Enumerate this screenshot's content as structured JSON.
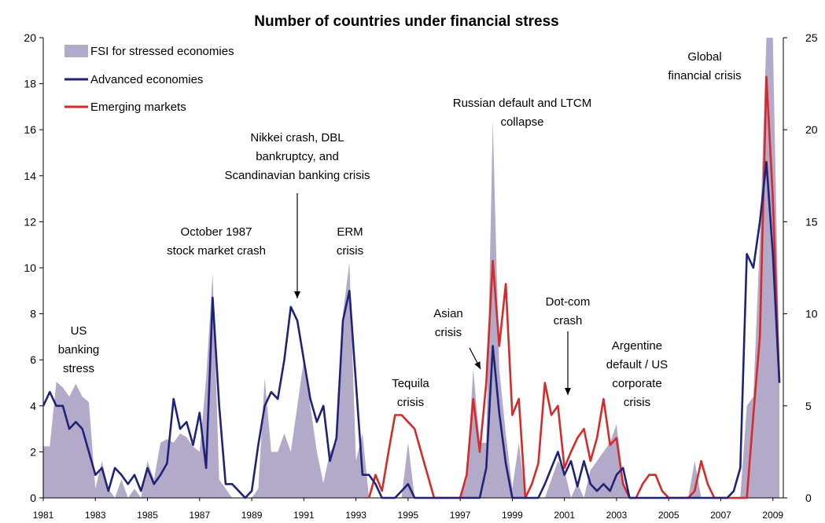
{
  "chart_data": {
    "type": "line",
    "title": "Number of countries under financial stress",
    "xlabel": "",
    "ylabel": "",
    "x_range": [
      1981,
      2009.4
    ],
    "ylim": [
      0,
      20
    ],
    "y2lim": [
      0,
      25
    ],
    "y_ticks": [
      0,
      2,
      4,
      6,
      8,
      10,
      12,
      14,
      16,
      18,
      20
    ],
    "y2_ticks": [
      0,
      5,
      10,
      15,
      20,
      25
    ],
    "x_tick_labels": [
      "1981",
      "1983",
      "1985",
      "1987",
      "1989",
      "1991",
      "1993",
      "1995",
      "1997",
      "1999",
      "2001",
      "2003",
      "2005",
      "2007",
      "2009"
    ],
    "legend_position": "top-left",
    "colors": {
      "fsi": "#b3a9c9",
      "advanced": "#1f2378",
      "emerging": "#d42a2a"
    },
    "series": [
      {
        "name": "FSI for stressed economies",
        "type": "area",
        "axis": "right",
        "x": [
          1981.0,
          1981.25,
          1981.5,
          1981.75,
          1982.0,
          1982.25,
          1982.5,
          1982.75,
          1983.0,
          1983.25,
          1983.5,
          1983.75,
          1984.0,
          1984.25,
          1984.5,
          1984.75,
          1985.0,
          1985.25,
          1985.5,
          1985.75,
          1986.0,
          1986.25,
          1986.5,
          1986.75,
          1987.0,
          1987.25,
          1987.5,
          1987.75,
          1988.0,
          1988.25,
          1988.5,
          1988.75,
          1989.0,
          1989.25,
          1989.5,
          1989.75,
          1990.0,
          1990.25,
          1990.5,
          1990.75,
          1991.0,
          1991.25,
          1991.5,
          1991.75,
          1992.0,
          1992.25,
          1992.5,
          1992.75,
          1993.0,
          1993.25,
          1993.5,
          1993.75,
          1994.0,
          1994.25,
          1994.5,
          1994.75,
          1995.0,
          1995.25,
          1995.5,
          1995.75,
          1996.0,
          1996.25,
          1996.5,
          1996.75,
          1997.0,
          1997.25,
          1997.5,
          1997.75,
          1998.0,
          1998.25,
          1998.5,
          1998.75,
          1999.0,
          1999.25,
          1999.5,
          1999.75,
          2000.0,
          2000.25,
          2000.5,
          2000.75,
          2001.0,
          2001.25,
          2001.5,
          2001.75,
          2002.0,
          2002.25,
          2002.5,
          2002.75,
          2003.0,
          2003.25,
          2003.5,
          2003.75,
          2004.0,
          2004.25,
          2004.5,
          2004.75,
          2005.0,
          2005.25,
          2005.5,
          2005.75,
          2006.0,
          2006.25,
          2006.5,
          2006.75,
          2007.0,
          2007.25,
          2007.5,
          2007.75,
          2008.0,
          2008.25,
          2008.5,
          2008.75,
          2009.0,
          2009.25
        ],
        "values": [
          2.8,
          2.8,
          6.3,
          6.0,
          5.5,
          6.2,
          5.5,
          5.2,
          0.5,
          2.0,
          0.5,
          0.0,
          1.0,
          0.0,
          0.5,
          0.0,
          2.0,
          1.0,
          3.0,
          3.2,
          3.0,
          3.5,
          3.3,
          2.8,
          2.5,
          6.5,
          12.2,
          1.0,
          0.5,
          0.0,
          0.0,
          0.0,
          0.0,
          0.5,
          6.5,
          2.5,
          2.5,
          3.5,
          2.5,
          5.0,
          7.5,
          5.0,
          2.5,
          0.8,
          2.5,
          3.0,
          10.0,
          12.8,
          2.0,
          3.5,
          0.0,
          0.0,
          0.0,
          0.0,
          0.0,
          0.0,
          3.0,
          0.0,
          0.0,
          0.0,
          0.0,
          0.0,
          0.0,
          0.0,
          0.0,
          1.0,
          7.0,
          3.0,
          3.0,
          20.5,
          7.0,
          3.5,
          0.5,
          3.0,
          0.0,
          0.0,
          0.0,
          0.0,
          1.0,
          2.0,
          1.5,
          0.0,
          0.8,
          0.0,
          1.5,
          2.0,
          2.5,
          3.0,
          4.0,
          1.0,
          0.0,
          0.0,
          0.0,
          0.0,
          0.0,
          0.0,
          0.0,
          0.0,
          0.0,
          0.0,
          2.0,
          0.0,
          0.0,
          0.0,
          0.0,
          0.0,
          0.0,
          0.0,
          5.0,
          5.5,
          14.0,
          25.0,
          25.0,
          7.0
        ]
      },
      {
        "name": "Advanced economies",
        "type": "line",
        "axis": "left",
        "x": [
          1981.0,
          1981.25,
          1981.5,
          1981.75,
          1982.0,
          1982.25,
          1982.5,
          1982.75,
          1983.0,
          1983.25,
          1983.5,
          1983.75,
          1984.0,
          1984.25,
          1984.5,
          1984.75,
          1985.0,
          1985.25,
          1985.5,
          1985.75,
          1986.0,
          1986.25,
          1986.5,
          1986.75,
          1987.0,
          1987.25,
          1987.5,
          1987.75,
          1988.0,
          1988.25,
          1988.5,
          1988.75,
          1989.0,
          1989.25,
          1989.5,
          1989.75,
          1990.0,
          1990.25,
          1990.5,
          1990.75,
          1991.0,
          1991.25,
          1991.5,
          1991.75,
          1992.0,
          1992.25,
          1992.5,
          1992.75,
          1993.0,
          1993.25,
          1993.5,
          1993.75,
          1994.0,
          1994.25,
          1994.5,
          1994.75,
          1995.0,
          1995.25,
          1995.5,
          1995.75,
          1996.0,
          1996.25,
          1996.5,
          1996.75,
          1997.0,
          1997.25,
          1997.5,
          1997.75,
          1998.0,
          1998.25,
          1998.5,
          1998.75,
          1999.0,
          1999.25,
          1999.5,
          1999.75,
          2000.0,
          2000.25,
          2000.5,
          2000.75,
          2001.0,
          2001.25,
          2001.5,
          2001.75,
          2002.0,
          2002.25,
          2002.5,
          2002.75,
          2003.0,
          2003.25,
          2003.5,
          2003.75,
          2004.0,
          2004.25,
          2004.5,
          2004.75,
          2005.0,
          2005.25,
          2005.5,
          2005.75,
          2006.0,
          2006.25,
          2006.5,
          2006.75,
          2007.0,
          2007.25,
          2007.5,
          2007.75,
          2008.0,
          2008.25,
          2008.5,
          2008.75,
          2009.0,
          2009.25
        ],
        "values": [
          4.0,
          4.6,
          4.0,
          4.0,
          3.0,
          3.3,
          3.0,
          2.0,
          1.0,
          1.3,
          0.3,
          1.3,
          1.0,
          0.6,
          1.0,
          0.3,
          1.3,
          0.6,
          1.0,
          1.5,
          4.3,
          3.0,
          3.3,
          2.3,
          3.7,
          1.3,
          8.7,
          4.0,
          0.6,
          0.6,
          0.3,
          0.0,
          0.3,
          2.3,
          4.0,
          4.6,
          4.3,
          6.0,
          8.3,
          7.7,
          6.0,
          4.3,
          3.3,
          4.0,
          1.6,
          2.6,
          7.7,
          9.0,
          5.0,
          1.0,
          1.0,
          0.6,
          0.0,
          0.0,
          0.0,
          0.3,
          0.6,
          0.0,
          0.0,
          0.0,
          0.0,
          0.0,
          0.0,
          0.0,
          0.0,
          0.0,
          0.0,
          0.0,
          1.3,
          6.6,
          3.7,
          1.5,
          0.0,
          0.0,
          0.0,
          0.0,
          0.0,
          0.6,
          1.3,
          2.0,
          1.0,
          1.6,
          0.5,
          1.6,
          0.6,
          0.3,
          0.6,
          0.3,
          1.0,
          1.3,
          0.0,
          0.0,
          0.0,
          0.0,
          0.0,
          0.0,
          0.0,
          0.0,
          0.0,
          0.0,
          0.0,
          0.0,
          0.0,
          0.0,
          0.0,
          0.0,
          0.3,
          1.3,
          10.6,
          10.0,
          12.0,
          14.6,
          10.6,
          5.0
        ]
      },
      {
        "name": "Emerging markets",
        "type": "line",
        "axis": "left",
        "x": [
          1993.5,
          1993.75,
          1994.0,
          1994.25,
          1994.5,
          1994.75,
          1995.0,
          1995.25,
          1995.5,
          1995.75,
          1996.0,
          1996.25,
          1996.5,
          1996.75,
          1997.0,
          1997.25,
          1997.5,
          1997.75,
          1998.0,
          1998.25,
          1998.5,
          1998.75,
          1999.0,
          1999.25,
          1999.5,
          1999.75,
          2000.0,
          2000.25,
          2000.5,
          2000.75,
          2001.0,
          2001.25,
          2001.5,
          2001.75,
          2002.0,
          2002.25,
          2002.5,
          2002.75,
          2003.0,
          2003.25,
          2003.5,
          2003.75,
          2004.0,
          2004.25,
          2004.5,
          2004.75,
          2005.0,
          2005.25,
          2005.5,
          2005.75,
          2006.0,
          2006.25,
          2006.5,
          2006.75,
          2007.0,
          2007.25,
          2007.5,
          2007.75,
          2008.0,
          2008.25,
          2008.5,
          2008.75,
          2009.0,
          2009.25
        ],
        "values": [
          0.0,
          1.0,
          0.3,
          2.0,
          3.6,
          3.6,
          3.3,
          3.0,
          2.0,
          1.0,
          0.0,
          0.0,
          0.0,
          0.0,
          0.0,
          1.0,
          4.3,
          2.0,
          5.0,
          10.3,
          6.6,
          9.3,
          3.6,
          4.3,
          0.0,
          0.6,
          1.5,
          5.0,
          3.6,
          4.0,
          1.3,
          2.0,
          2.6,
          3.0,
          1.6,
          2.6,
          4.3,
          2.3,
          2.6,
          0.6,
          0.0,
          0.0,
          0.6,
          1.0,
          1.0,
          0.3,
          0.0,
          0.0,
          0.0,
          0.0,
          0.3,
          1.6,
          0.6,
          0.0,
          0.0,
          0.0,
          0.0,
          0.0,
          0.0,
          3.6,
          7.0,
          18.3,
          13.0,
          5.0
        ]
      }
    ],
    "annotations": [
      {
        "lines": [
          "US",
          "banking",
          "stress"
        ]
      },
      {
        "lines": [
          "October 1987",
          "stock market crash"
        ]
      },
      {
        "lines": [
          "Nikkei crash, DBL",
          "bankruptcy, and",
          "Scandinavian banking crisis"
        ]
      },
      {
        "lines": [
          "ERM",
          "crisis"
        ]
      },
      {
        "lines": [
          "Tequila",
          "crisis"
        ]
      },
      {
        "lines": [
          "Asian",
          "crisis"
        ]
      },
      {
        "lines": [
          "Russian default and LTCM",
          "collapse"
        ]
      },
      {
        "lines": [
          "Dot-com",
          "crash"
        ]
      },
      {
        "lines": [
          "Argentine",
          "default / US",
          "corporate",
          "crisis"
        ]
      },
      {
        "lines": [
          "Global",
          "financial crisis"
        ]
      }
    ]
  }
}
